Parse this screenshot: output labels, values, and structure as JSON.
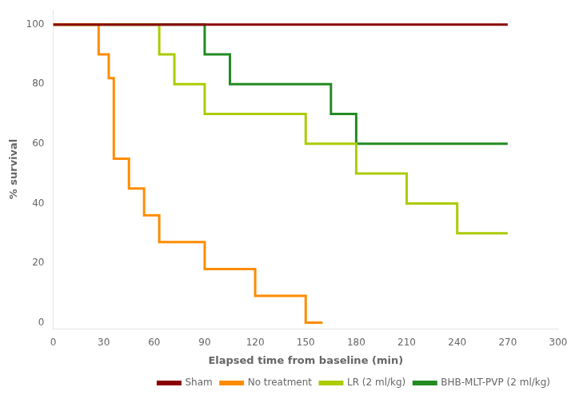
{
  "chart_data": {
    "type": "line",
    "title": "",
    "xlabel": "Elapsed time from baseline (min)",
    "ylabel": "% survival",
    "xlim": [
      0,
      300
    ],
    "ylim": [
      -2,
      105
    ],
    "xticks": [
      0,
      30,
      60,
      90,
      120,
      150,
      180,
      210,
      240,
      270,
      300
    ],
    "yticks": [
      0,
      20,
      40,
      60,
      80,
      100
    ],
    "grid": false,
    "legend": "lower right",
    "series": [
      {
        "name": "Sham",
        "color": "#8B0000",
        "x": [
          0,
          270
        ],
        "values": [
          100,
          100
        ]
      },
      {
        "name": "No treatment",
        "color": "#FF8C00",
        "x": [
          0,
          27,
          27,
          33,
          33,
          36,
          36,
          45,
          45,
          54,
          54,
          63,
          63,
          90,
          90,
          120,
          120,
          150,
          150,
          160
        ],
        "values": [
          100,
          100,
          90,
          90,
          82,
          82,
          55,
          55,
          45,
          45,
          36,
          36,
          27,
          27,
          18,
          18,
          9,
          9,
          0,
          0
        ]
      },
      {
        "name": "LR (2 ml/kg)",
        "color": "#AACC00",
        "x": [
          0,
          63,
          63,
          72,
          72,
          90,
          90,
          150,
          150,
          180,
          180,
          210,
          210,
          240,
          240,
          270
        ],
        "values": [
          100,
          100,
          90,
          90,
          80,
          80,
          70,
          70,
          60,
          60,
          50,
          50,
          40,
          40,
          30,
          30
        ]
      },
      {
        "name": "BHB-MLT-PVP (2 ml/kg)",
        "color": "#228B22",
        "x": [
          0,
          90,
          90,
          105,
          105,
          165,
          165,
          180,
          180,
          270
        ],
        "values": [
          100,
          100,
          90,
          90,
          80,
          80,
          70,
          70,
          60,
          60
        ]
      }
    ]
  }
}
